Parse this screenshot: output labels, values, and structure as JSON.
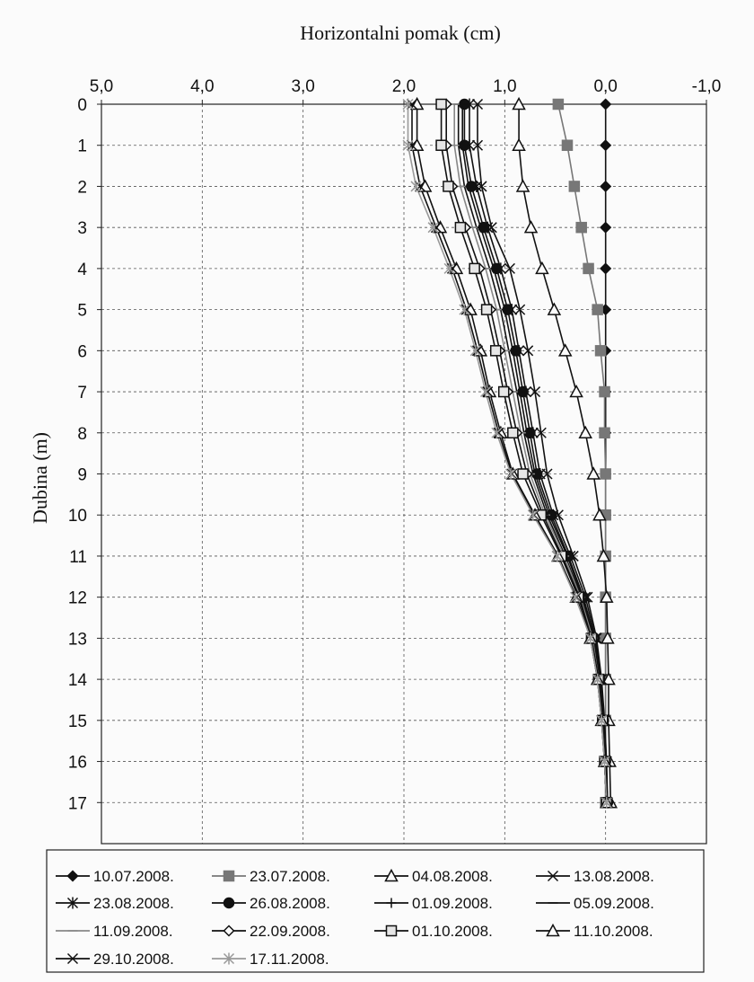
{
  "chart_data": {
    "type": "line",
    "xlabel": "Horizontalni pomak (cm)",
    "ylabel": "Dubina (m)",
    "x_axis": {
      "min": -1.0,
      "max": 5.0,
      "reversed": true,
      "position": "top",
      "tick_values": [
        5,
        4,
        3,
        2,
        1,
        0,
        -1
      ],
      "tick_labels": [
        "5,0",
        "4,0",
        "3,0",
        "2,0",
        "1,0",
        "0,0",
        "-1,0"
      ]
    },
    "y_axis": {
      "min": 0,
      "max": 18,
      "reversed": true,
      "tick_values": [
        0,
        1,
        2,
        3,
        4,
        5,
        6,
        7,
        8,
        9,
        10,
        11,
        12,
        13,
        14,
        15,
        16,
        17
      ],
      "tick_labels": [
        "0",
        "1",
        "2",
        "3",
        "4",
        "5",
        "6",
        "7",
        "8",
        "9",
        "10",
        "11",
        "12",
        "13",
        "14",
        "15",
        "16",
        "17"
      ]
    },
    "grid": true,
    "legend_position": "bottom",
    "depth": [
      0,
      1,
      2,
      3,
      4,
      5,
      6,
      7,
      8,
      9,
      10,
      11,
      12,
      13,
      14,
      15,
      16,
      17
    ],
    "series": [
      {
        "name": "10.07.2008.",
        "marker": "diamond-filled",
        "color": "#111111",
        "values": [
          0,
          0,
          0,
          0,
          0,
          0,
          0,
          0,
          0,
          0,
          0,
          0,
          0,
          0,
          0,
          0,
          0,
          0
        ]
      },
      {
        "name": "23.07.2008.",
        "marker": "square-filled",
        "color": "#777777",
        "values": [
          0.47,
          0.38,
          0.31,
          0.24,
          0.17,
          0.08,
          0.05,
          0.01,
          0.01,
          0,
          0,
          0,
          0,
          0,
          0,
          0,
          0,
          0
        ]
      },
      {
        "name": "04.08.2008.",
        "marker": "triangle-open",
        "color": "#111111",
        "values": [
          0.86,
          0.86,
          0.82,
          0.74,
          0.63,
          0.51,
          0.4,
          0.29,
          0.2,
          0.12,
          0.06,
          0.02,
          -0.01,
          -0.02,
          -0.03,
          -0.03,
          -0.04,
          -0.05
        ]
      },
      {
        "name": "13.08.2008.",
        "marker": "x",
        "color": "#111111",
        "values": [
          1.27,
          1.27,
          1.23,
          1.13,
          0.95,
          0.85,
          0.77,
          0.7,
          0.64,
          0.58,
          0.47,
          0.32,
          0.18,
          0.09,
          0.04,
          0.01,
          -0.01,
          -0.02
        ]
      },
      {
        "name": "23.08.2008.",
        "marker": "star",
        "color": "#111111",
        "values": [
          1.35,
          1.35,
          1.28,
          1.17,
          1.04,
          0.93,
          0.86,
          0.79,
          0.72,
          0.65,
          0.52,
          0.35,
          0.2,
          0.1,
          0.05,
          0.02,
          0,
          -0.02
        ]
      },
      {
        "name": "26.08.2008.",
        "marker": "circle-filled",
        "color": "#111111",
        "values": [
          1.4,
          1.4,
          1.33,
          1.21,
          1.08,
          0.97,
          0.89,
          0.82,
          0.75,
          0.68,
          0.54,
          0.37,
          0.22,
          0.11,
          0.06,
          0.02,
          0,
          -0.02
        ]
      },
      {
        "name": "01.09.2008.",
        "marker": "plus",
        "color": "#111111",
        "values": [
          1.42,
          1.42,
          1.36,
          1.24,
          1.11,
          1.0,
          0.92,
          0.85,
          0.78,
          0.7,
          0.56,
          0.38,
          0.23,
          0.12,
          0.06,
          0.03,
          0.01,
          -0.01
        ]
      },
      {
        "name": "05.09.2008.",
        "marker": "dash",
        "color": "#111111",
        "values": [
          1.46,
          1.46,
          1.4,
          1.28,
          1.15,
          1.04,
          0.96,
          0.88,
          0.81,
          0.72,
          0.58,
          0.4,
          0.24,
          0.12,
          0.06,
          0.03,
          0.01,
          -0.01
        ]
      },
      {
        "name": "11.09.2008.",
        "marker": "dash",
        "color": "#888888",
        "values": [
          1.5,
          1.5,
          1.44,
          1.32,
          1.19,
          1.08,
          1.0,
          0.92,
          0.84,
          0.75,
          0.6,
          0.41,
          0.25,
          0.13,
          0.07,
          0.03,
          0.01,
          -0.01
        ]
      },
      {
        "name": "22.09.2008.",
        "marker": "diamond-open",
        "color": "#111111",
        "values": [
          1.58,
          1.58,
          1.52,
          1.39,
          1.25,
          1.14,
          1.05,
          0.97,
          0.88,
          0.78,
          0.62,
          0.43,
          0.26,
          0.14,
          0.07,
          0.03,
          0.01,
          -0.01
        ]
      },
      {
        "name": "01.10.2008.",
        "marker": "square-open",
        "color": "#111111",
        "values": [
          1.63,
          1.63,
          1.56,
          1.44,
          1.3,
          1.18,
          1.09,
          1.01,
          0.92,
          0.82,
          0.64,
          0.44,
          0.27,
          0.14,
          0.07,
          0.03,
          0.01,
          -0.01
        ]
      },
      {
        "name": "11.10.2008.",
        "marker": "triangle-open",
        "color": "#111111",
        "values": [
          1.87,
          1.87,
          1.79,
          1.64,
          1.48,
          1.34,
          1.24,
          1.15,
          1.04,
          0.92,
          0.7,
          0.47,
          0.29,
          0.15,
          0.08,
          0.04,
          0.01,
          -0.01
        ]
      },
      {
        "name": "29.10.2008.",
        "marker": "x",
        "color": "#111111",
        "values": [
          1.92,
          1.92,
          1.84,
          1.68,
          1.52,
          1.38,
          1.27,
          1.17,
          1.06,
          0.93,
          0.71,
          0.48,
          0.29,
          0.15,
          0.08,
          0.04,
          0.01,
          -0.01
        ]
      },
      {
        "name": "17.11.2008.",
        "marker": "star",
        "color": "#999999",
        "values": [
          1.96,
          1.96,
          1.88,
          1.71,
          1.55,
          1.4,
          1.29,
          1.19,
          1.08,
          0.94,
          0.72,
          0.48,
          0.3,
          0.15,
          0.08,
          0.04,
          0.01,
          -0.01
        ]
      }
    ]
  }
}
